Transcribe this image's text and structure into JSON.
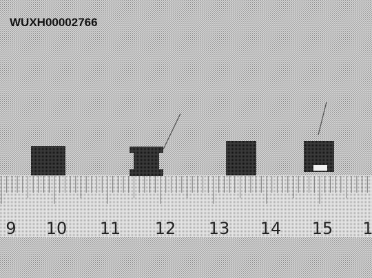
{
  "photo": {
    "caption": "WUXH00002766",
    "ruler_labels": [
      "9",
      "10",
      "11",
      "12",
      "13",
      "14",
      "15",
      "1"
    ]
  }
}
